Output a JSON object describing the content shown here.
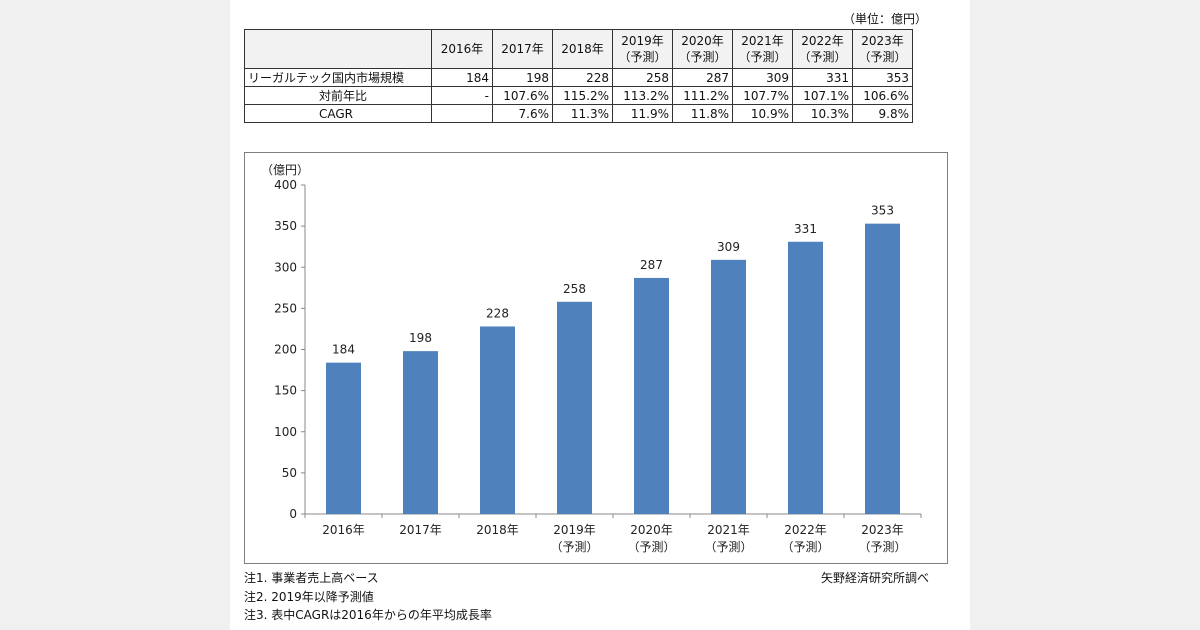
{
  "unit_label": "（単位：億円）",
  "table": {
    "header": [
      "",
      "2016年",
      "2017年",
      "2018年",
      "2019年\n（予測）",
      "2020年\n（予測）",
      "2021年\n（予測）",
      "2022年\n（予測）",
      "2023年\n（予測）"
    ],
    "rows": [
      {
        "label": "リーガルテック国内市場規模",
        "values": [
          "184",
          "198",
          "228",
          "258",
          "287",
          "309",
          "331",
          "353"
        ]
      },
      {
        "label": "対前年比",
        "values": [
          "-",
          "107.6%",
          "115.2%",
          "113.2%",
          "111.2%",
          "107.7%",
          "107.1%",
          "106.6%"
        ]
      },
      {
        "label": "CAGR",
        "values": [
          "",
          "7.6%",
          "11.3%",
          "11.9%",
          "11.8%",
          "10.9%",
          "10.3%",
          "9.8%"
        ]
      }
    ]
  },
  "chart_data": {
    "type": "bar",
    "title": "",
    "ylabel": "（億円）",
    "xlabel": "",
    "categories": [
      [
        "2016年"
      ],
      [
        "2017年"
      ],
      [
        "2018年"
      ],
      [
        "2019年",
        "（予測）"
      ],
      [
        "2020年",
        "（予測）"
      ],
      [
        "2021年",
        "（予測）"
      ],
      [
        "2022年",
        "（予測）"
      ],
      [
        "2023年",
        "（予測）"
      ]
    ],
    "values": [
      184,
      198,
      228,
      258,
      287,
      309,
      331,
      353
    ],
    "ylim": [
      0,
      400
    ],
    "yticks": [
      0,
      50,
      100,
      150,
      200,
      250,
      300,
      350,
      400
    ],
    "bar_color": "#4f81bd",
    "grid": false,
    "legend": "none"
  },
  "notes": [
    "注1. 事業者売上高ベース",
    "注2. 2019年以降予測値",
    "注3. 表中CAGRは2016年からの年平均成長率"
  ],
  "source": "矢野経済研究所調べ"
}
